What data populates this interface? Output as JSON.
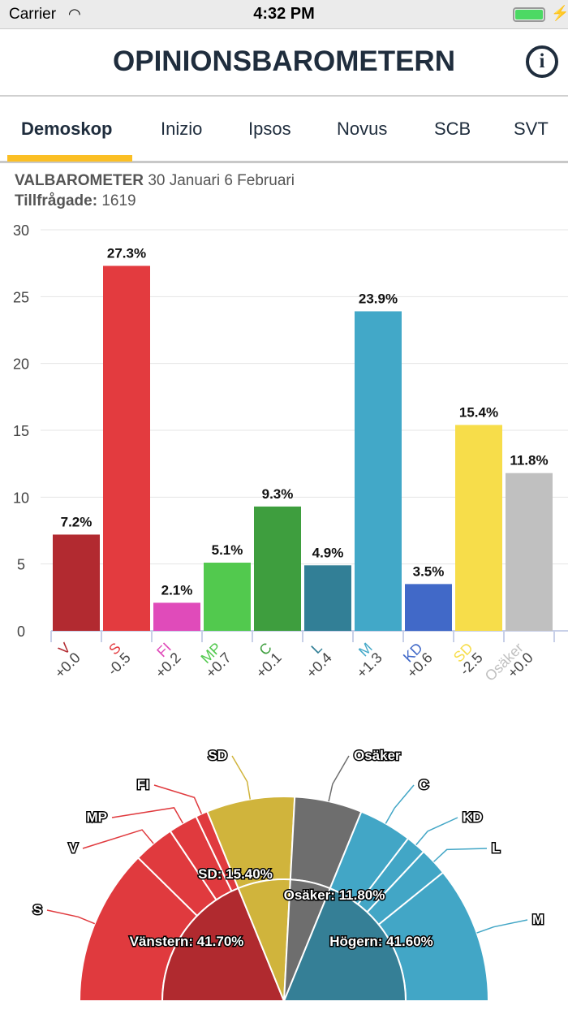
{
  "status": {
    "carrier": "Carrier",
    "time": "4:32 PM"
  },
  "header": {
    "title": "OPINIONSBAROMETERN",
    "info_icon": "info-icon"
  },
  "tabs": [
    {
      "label": "Demoskop",
      "active": true
    },
    {
      "label": "Inizio"
    },
    {
      "label": "Ipsos"
    },
    {
      "label": "Novus"
    },
    {
      "label": "SCB"
    },
    {
      "label": "SVT"
    }
  ],
  "poll": {
    "name": "VALBAROMETER",
    "dates": "30 Januari 6 Februari",
    "respondents_label": "Tillfrågade:",
    "respondents": "1619"
  },
  "chart_data": [
    {
      "type": "bar",
      "ylim": [
        0,
        30
      ],
      "yticks": [
        0,
        5,
        10,
        15,
        20,
        25,
        30
      ],
      "grid": true,
      "categories": [
        "V",
        "S",
        "FI",
        "MP",
        "C",
        "L",
        "M",
        "KD",
        "SD",
        "Osäker"
      ],
      "values": [
        7.2,
        27.3,
        2.1,
        5.1,
        9.3,
        4.9,
        23.9,
        3.5,
        15.4,
        11.8
      ],
      "data_labels": [
        "7.2%",
        "27.3%",
        "2.1%",
        "5.1%",
        "9.3%",
        "4.9%",
        "23.9%",
        "3.5%",
        "15.4%",
        "11.8%"
      ],
      "changes": [
        "+0.0",
        "-0.5",
        "+0.2",
        "+0.7",
        "+0.1",
        "+0.4",
        "+1.3",
        "+0.6",
        "-2.5",
        "+0.0"
      ],
      "colors": [
        "#b22a30",
        "#e33b3f",
        "#e04bba",
        "#52c94e",
        "#3e9e3e",
        "#327f96",
        "#42a8c8",
        "#4169c8",
        "#f7dd4a",
        "#c0c0c0"
      ]
    },
    {
      "type": "pie",
      "style": "half-donut",
      "outer": {
        "labels": [
          "S",
          "V",
          "MP",
          "FI",
          "SD",
          "Osäker",
          "C",
          "KD",
          "L",
          "M"
        ],
        "values": [
          27.3,
          7.2,
          5.1,
          2.1,
          15.4,
          11.8,
          9.3,
          3.5,
          4.9,
          23.9
        ],
        "colors": [
          "#e03a3e",
          "#e03a3e",
          "#e03a3e",
          "#e03a3e",
          "#d0b43c",
          "#6e6e6e",
          "#42a6c6",
          "#42a6c6",
          "#42a6c6",
          "#42a6c6"
        ]
      },
      "inner": {
        "labels": [
          "Vänstern: 41.70%",
          "SD: 15.40%",
          "Osäker: 11.80%",
          "Högern: 41.60%"
        ],
        "values": [
          41.7,
          15.4,
          11.8,
          41.6
        ],
        "colors": [
          "#b02a2f",
          "#d0b43c",
          "#6e6e6e",
          "#357f96"
        ]
      }
    }
  ]
}
